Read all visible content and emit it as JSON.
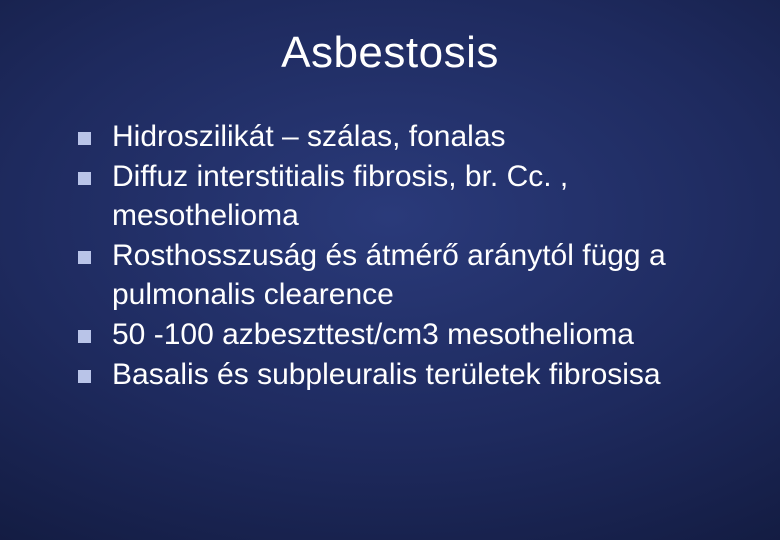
{
  "slide": {
    "title": "Asbestosis",
    "title_fontsize": 44,
    "title_color": "#ffffff",
    "background_gradient": {
      "type": "radial",
      "stops": [
        "#2a3a7a",
        "#1e2a5e",
        "#141d44",
        "#0a1030",
        "#050818"
      ]
    },
    "bullet_marker_color": "#b9c4e8",
    "bullet_marker_size": 13,
    "body_fontsize": 30,
    "body_color": "#ffffff",
    "bullets": [
      "Hidroszilikát – szálas, fonalas",
      "Diffuz interstitialis fibrosis, br. Cc. , mesothelioma",
      "Rosthosszuság és átmérő aránytól függ a pulmonalis clearence",
      "50 -100 azbeszttest/cm3 mesothelioma",
      "Basalis és subpleuralis területek fibrosisa"
    ]
  }
}
